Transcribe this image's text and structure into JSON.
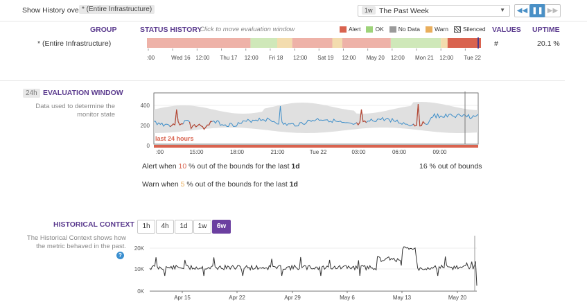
{
  "top": {
    "show_history_label": "Show History over",
    "scope_value": "* (Entire Infrastructure)",
    "range_badge": "1w",
    "range_label": "The Past Week"
  },
  "status_history": {
    "col_group": "GROUP",
    "col_status": "STATUS HISTORY",
    "hint": "Click to move evaluation window",
    "col_values": "VALUES",
    "col_uptime": "UPTIME",
    "legend": [
      {
        "label": "Alert",
        "color": "#d9634f"
      },
      {
        "label": "OK",
        "color": "#9ed37a"
      },
      {
        "label": "No Data",
        "color": "#9a9a9a"
      },
      {
        "label": "Warn",
        "color": "#e9ae5c"
      },
      {
        "label": "Silenced",
        "color": "#ffffff"
      }
    ],
    "row": {
      "group": "* (Entire Infrastructure)",
      "values": "#",
      "uptime": "20.1 %"
    },
    "ticks": [
      ":00",
      "Wed 16",
      "12:00",
      "Thu 17",
      "12:00",
      "Fri 18",
      "12:00",
      "Sat 19",
      "12:00",
      "May 20",
      "12:00",
      "Mon 21",
      "12:00",
      "Tue 22"
    ],
    "segments": [
      {
        "state": "alert_light",
        "frac": 0.31
      },
      {
        "state": "ok_light",
        "frac": 0.08
      },
      {
        "state": "warn_light",
        "frac": 0.045
      },
      {
        "state": "alert_light",
        "frac": 0.12
      },
      {
        "state": "warn_light",
        "frac": 0.03
      },
      {
        "state": "alert_light",
        "frac": 0.145
      },
      {
        "state": "ok_light",
        "frac": 0.15
      },
      {
        "state": "warn_light",
        "frac": 0.02
      },
      {
        "state": "alert",
        "frac": 0.1
      }
    ]
  },
  "evaluation": {
    "badge": "24h",
    "title": "EVALUATION WINDOW",
    "desc": "Data used to determine the monitor state",
    "y_ticks": [
      "400",
      "200",
      "0"
    ],
    "x_ticks": [
      ":00",
      "15:00",
      "18:00",
      "21:00",
      "Tue 22",
      "03:00",
      "06:00",
      "09:00"
    ],
    "window_label": "last 24 hours",
    "alert_text_pre": "Alert when",
    "alert_pct": "10",
    "alert_text_post": "% out of the bounds for the last",
    "alert_period": "1d",
    "warn_text_pre": "Warn when",
    "warn_pct": "5",
    "warn_text_post": "% out of the bounds for the last",
    "warn_period": "1d",
    "out_of_bounds_value": "16",
    "out_of_bounds_text": "% out of bounds"
  },
  "historical": {
    "title": "HISTORICAL CONTEXT",
    "desc": "The Historical Context shows how the metric behaved in the past.",
    "buttons": [
      "1h",
      "4h",
      "1d",
      "1w",
      "6w"
    ],
    "active": "6w",
    "y_ticks": [
      "20K",
      "10K",
      "0K"
    ],
    "x_ticks": [
      "Apr 15",
      "Apr 22",
      "Apr 29",
      "May 6",
      "May 13",
      "May 20"
    ]
  }
}
